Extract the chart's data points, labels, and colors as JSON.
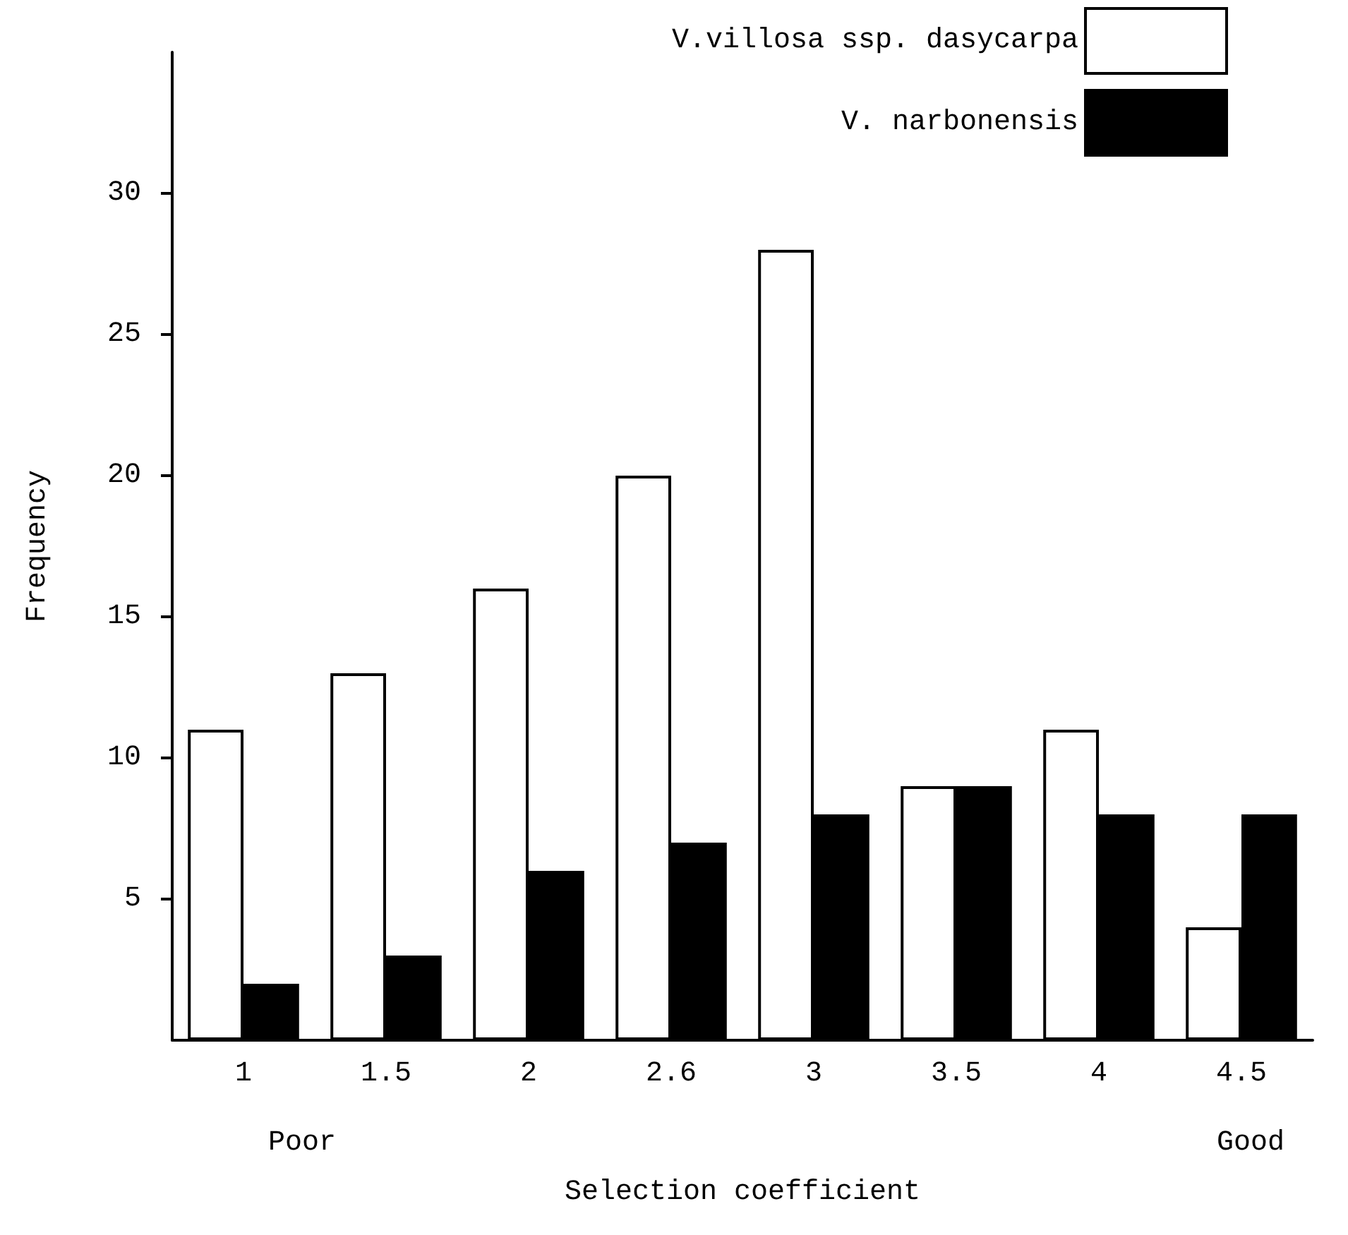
{
  "chart_data": {
    "type": "bar",
    "xlabel": "Selection coefficient",
    "ylabel": "Frequency",
    "categories": [
      "1",
      "1.5",
      "2",
      "2.6",
      "3",
      "3.5",
      "4",
      "4.5"
    ],
    "series": [
      {
        "name": "V.villosa ssp. dasycarpa",
        "color": "#ffffff",
        "values": [
          11,
          13,
          16,
          20,
          28,
          9,
          11,
          4
        ]
      },
      {
        "name": "V. narbonensis",
        "color": "#000000",
        "values": [
          2,
          3,
          6,
          7,
          8,
          9,
          8,
          8
        ]
      }
    ],
    "ylim": [
      0,
      35
    ],
    "yticks": [
      5,
      10,
      15,
      20,
      25,
      30
    ],
    "grid": false,
    "legend": "top right",
    "annotations": [
      "Poor",
      "Good"
    ]
  }
}
